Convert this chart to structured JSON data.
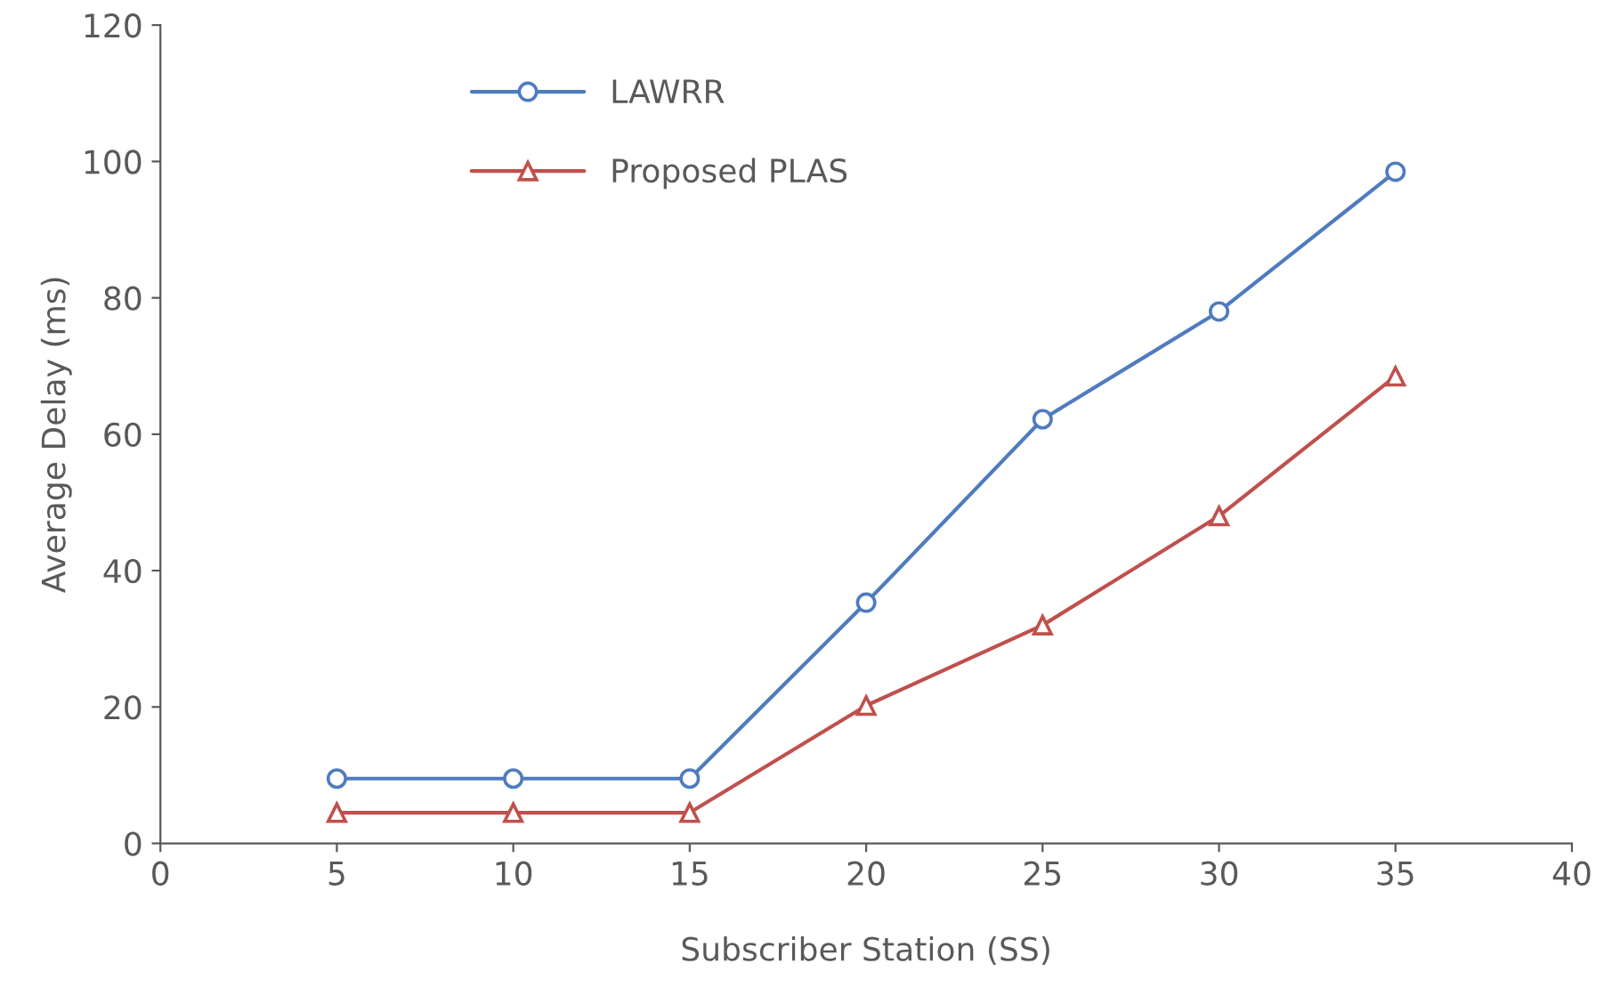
{
  "chart_data": {
    "type": "line",
    "xlabel": "Subscriber Station (SS)",
    "ylabel": "Average Delay (ms)",
    "x": [
      5,
      10,
      15,
      20,
      25,
      30,
      35
    ],
    "series": [
      {
        "name": "LAWRR",
        "color": "#4f7bbf",
        "marker": "circle",
        "values": [
          9.5,
          9.5,
          9.5,
          35.3,
          62.2,
          78,
          98.5
        ]
      },
      {
        "name": "Proposed PLAS",
        "color": "#c0504d",
        "marker": "triangle",
        "values": [
          4.5,
          4.5,
          4.5,
          20.2,
          32,
          48,
          68.5
        ]
      }
    ],
    "xlim": [
      0,
      40
    ],
    "xticks": [
      0,
      5,
      10,
      15,
      20,
      25,
      30,
      35,
      40
    ],
    "ylim": [
      0,
      120
    ],
    "yticks": [
      0,
      20,
      40,
      60,
      80,
      100,
      120
    ],
    "grid": false,
    "legend": "top left",
    "line_style": "solid"
  }
}
